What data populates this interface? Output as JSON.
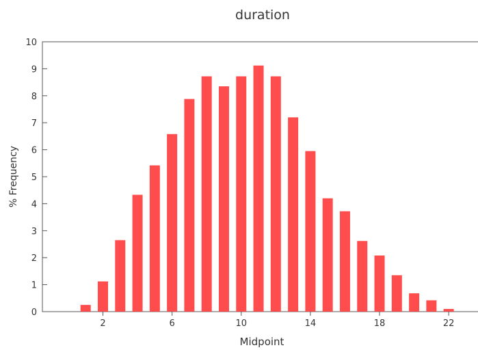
{
  "chart_data": {
    "type": "bar",
    "title": "duration",
    "xlabel": "Midpoint",
    "ylabel": "% Frequency",
    "x": [
      1,
      2,
      3,
      4,
      5,
      6,
      7,
      8,
      9,
      10,
      11,
      12,
      13,
      14,
      15,
      16,
      17,
      18,
      19,
      20,
      21,
      22
    ],
    "values": [
      0.25,
      1.12,
      2.65,
      4.33,
      5.42,
      6.58,
      7.88,
      8.72,
      8.35,
      8.72,
      9.12,
      8.72,
      7.2,
      5.95,
      4.2,
      3.72,
      2.62,
      2.08,
      1.35,
      0.68,
      0.42,
      0.1
    ],
    "x_tick_labels": [
      "2",
      "6",
      "10",
      "14",
      "18",
      "22"
    ],
    "y_tick_labels": [
      "0",
      "1",
      "2",
      "3",
      "4",
      "5",
      "6",
      "7",
      "8",
      "9",
      "10"
    ],
    "xlim": [
      -1.5,
      25
    ],
    "ylim": [
      0,
      10
    ],
    "grid": false,
    "bar_color": "#ff4d4d"
  }
}
